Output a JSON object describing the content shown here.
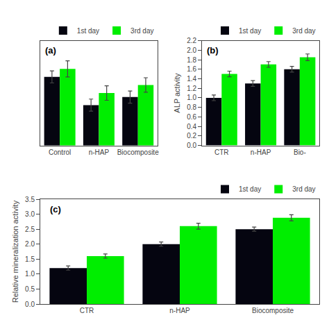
{
  "chart_data": [
    {
      "type": "bar",
      "title": "(a)",
      "categories": [
        "Control",
        "n-HAP",
        "Biocomposite"
      ],
      "series": [
        {
          "name": "1st day",
          "color": "#050510",
          "values": [
            97,
            90,
            92
          ],
          "errors": [
            1.5,
            1.5,
            1.5
          ]
        },
        {
          "name": "3rd day",
          "color": "#00ee00",
          "values": [
            99,
            93,
            95
          ],
          "errors": [
            2.0,
            1.8,
            1.8
          ]
        }
      ],
      "ylim": [
        80,
        106
      ],
      "tick_labels": "x",
      "grid": false,
      "legend": "upper right"
    },
    {
      "type": "bar",
      "title": "(b)",
      "categories": [
        "CTR",
        "n-HAP",
        "Bio-"
      ],
      "series": [
        {
          "name": "1st day",
          "color": "#050510",
          "values": [
            1.0,
            1.3,
            1.6
          ],
          "errors": [
            0.06,
            0.06,
            0.06
          ]
        },
        {
          "name": "3rd day",
          "color": "#00ee00",
          "values": [
            1.5,
            1.7,
            1.85
          ],
          "errors": [
            0.06,
            0.06,
            0.07
          ]
        }
      ],
      "ylabel": "ALP activity",
      "ylim": [
        0.0,
        2.2
      ],
      "yticks": [
        {
          "value": 0,
          "label": "0.0"
        },
        0.2,
        0.4,
        0.6,
        0.8,
        {
          "value": 1,
          "label": "1.0"
        },
        1.2,
        1.4,
        1.6,
        1.8,
        {
          "value": 2,
          "label": "2.0"
        },
        2.2
      ],
      "grid": false,
      "legend": "upper right"
    },
    {
      "type": "bar",
      "title": "(c)",
      "categories": [
        "CTR",
        "n-HAP",
        "Biocomposite"
      ],
      "series": [
        {
          "name": "1st day",
          "color": "#050510",
          "values": [
            1.2,
            2.0,
            2.5
          ],
          "errors": [
            0.07,
            0.07,
            0.07
          ]
        },
        {
          "name": "3rd day",
          "color": "#00ee00",
          "values": [
            1.6,
            2.6,
            2.88
          ],
          "errors": [
            0.07,
            0.1,
            0.1
          ]
        }
      ],
      "ylabel": "Relative mineralization activity",
      "ylim": [
        0.0,
        3.5
      ],
      "yticks": [
        {
          "value": 0,
          "label": "0.0"
        },
        0.5,
        {
          "value": 1,
          "label": "1.0"
        },
        1.5,
        {
          "value": 2,
          "label": "2.0"
        },
        2.5,
        {
          "value": 3,
          "label": "3.0"
        },
        3.5
      ],
      "grid": false,
      "legend": "upper right"
    }
  ]
}
